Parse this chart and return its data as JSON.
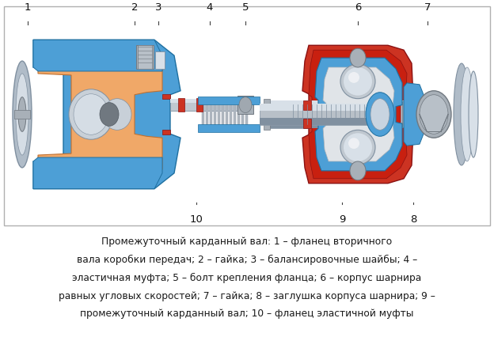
{
  "caption_line1": "Промежуточный карданный вал: 1 – фланец вторичного",
  "caption_line2": "вала коробки передач; 2 – гайка; 3 – балансировочные шайбы; 4 –",
  "caption_line3": "эластичная муфта; 5 – болт крепления фланца; 6 – корпус шарнира",
  "caption_line4": "равных угловых скоростей; 7 – гайка; 8 – заглушка корпуса шарнира; 9 –",
  "caption_line5": "промежуточный карданный вал; 10 – фланец эластичной муфты",
  "bg_color": "#ffffff",
  "border_color": "#b0b0b0",
  "caption_color": "#1a1a1a",
  "caption_fontsize": 8.8,
  "label_color": "#111111",
  "label_fontsize": 9.5,
  "fig_width": 6.24,
  "fig_height": 4.27,
  "dpi": 100,
  "blue": "#4d9fd6",
  "blue_dark": "#1e6fa0",
  "blue_light": "#a8d4ef",
  "orange": "#f0a868",
  "orange_dark": "#c07030",
  "red": "#cc3322",
  "red_dark": "#8b1111",
  "steel": "#b0bcc8",
  "steel_light": "#d8e0e8",
  "steel_dark": "#8090a0",
  "silver": "#c8d0d8",
  "gray_light": "#e0e4e8",
  "gray_mid": "#a8b0b8",
  "gray_dark": "#707880"
}
